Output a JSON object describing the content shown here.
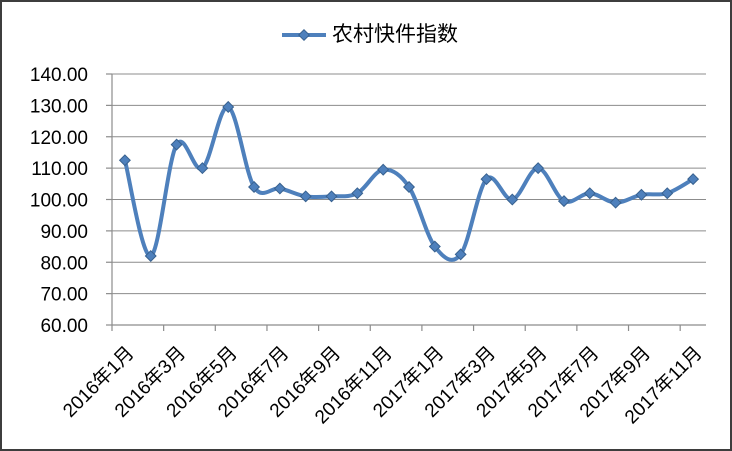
{
  "legend": {
    "label": "农村快件指数"
  },
  "colors": {
    "line": "#4E80BC",
    "marker_border": "#38618F",
    "gridline": "#8C8C8C",
    "axis": "#8C8C8C",
    "text": "#000000",
    "background": "#FFFFFF",
    "figure_border": "#3D3D3D"
  },
  "chart_data": {
    "type": "line",
    "smoothed": true,
    "grid": true,
    "legend_position": "top",
    "title": "",
    "xlabel": "",
    "ylabel": "",
    "ylim": [
      60,
      140
    ],
    "y_ticks": [
      60,
      70,
      80,
      90,
      100,
      110,
      120,
      130,
      140
    ],
    "y_tick_labels": [
      "60.00",
      "70.00",
      "80.00",
      "90.00",
      "100.00",
      "110.00",
      "120.00",
      "130.00",
      "140.00"
    ],
    "x": [
      "2016年1月",
      "2016年2月",
      "2016年3月",
      "2016年4月",
      "2016年5月",
      "2016年6月",
      "2016年7月",
      "2016年8月",
      "2016年9月",
      "2016年10月",
      "2016年11月",
      "2016年12月",
      "2017年1月",
      "2017年2月",
      "2017年3月",
      "2017年4月",
      "2017年5月",
      "2017年6月",
      "2017年7月",
      "2017年8月",
      "2017年9月",
      "2017年10月",
      "2017年11月"
    ],
    "x_tick_labels": [
      "2016年1月",
      "2016年3月",
      "2016年5月",
      "2016年7月",
      "2016年9月",
      "2016年11月",
      "2017年1月",
      "2017年3月",
      "2017年5月",
      "2017年7月",
      "2017年9月",
      "2017年11月"
    ],
    "x_label_interval": 2,
    "series": [
      {
        "name": "农村快件指数",
        "values": [
          112.5,
          82,
          117.5,
          110,
          129.5,
          104,
          103.5,
          101,
          101,
          102,
          109.5,
          104,
          85,
          82.5,
          106.5,
          100,
          110,
          99.5,
          102,
          99,
          101.5,
          102,
          106.5
        ]
      }
    ]
  }
}
